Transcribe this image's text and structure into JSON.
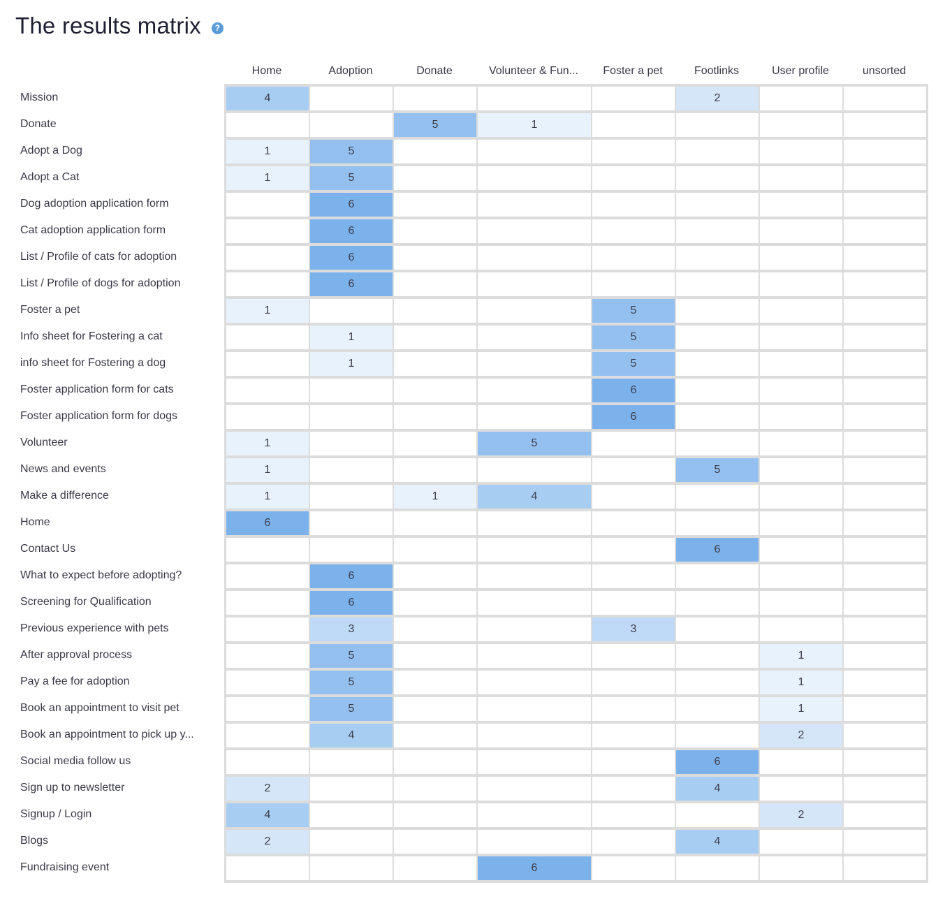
{
  "title": "The results matrix",
  "help_icon": "help-icon",
  "columns": [
    "Home",
    "Adoption",
    "Donate",
    "Volunteer & Fun...",
    "Foster a pet",
    "Footlinks",
    "User profile",
    "unsorted"
  ],
  "rows": [
    {
      "label": "Mission",
      "values": [
        4,
        0,
        0,
        0,
        0,
        2,
        0,
        0
      ]
    },
    {
      "label": "Donate",
      "values": [
        0,
        0,
        5,
        1,
        0,
        0,
        0,
        0
      ]
    },
    {
      "label": "Adopt a Dog",
      "values": [
        1,
        5,
        0,
        0,
        0,
        0,
        0,
        0
      ]
    },
    {
      "label": "Adopt a Cat",
      "values": [
        1,
        5,
        0,
        0,
        0,
        0,
        0,
        0
      ]
    },
    {
      "label": "Dog adoption application form",
      "values": [
        0,
        6,
        0,
        0,
        0,
        0,
        0,
        0
      ]
    },
    {
      "label": "Cat adoption application form",
      "values": [
        0,
        6,
        0,
        0,
        0,
        0,
        0,
        0
      ]
    },
    {
      "label": "List / Profile of cats for adoption",
      "values": [
        0,
        6,
        0,
        0,
        0,
        0,
        0,
        0
      ]
    },
    {
      "label": "List / Profile of dogs for adoption",
      "values": [
        0,
        6,
        0,
        0,
        0,
        0,
        0,
        0
      ]
    },
    {
      "label": "Foster a pet",
      "values": [
        1,
        0,
        0,
        0,
        5,
        0,
        0,
        0
      ]
    },
    {
      "label": "Info sheet for Fostering a cat",
      "values": [
        0,
        1,
        0,
        0,
        5,
        0,
        0,
        0
      ]
    },
    {
      "label": "info sheet for Fostering a dog",
      "values": [
        0,
        1,
        0,
        0,
        5,
        0,
        0,
        0
      ]
    },
    {
      "label": "Foster application form for cats",
      "values": [
        0,
        0,
        0,
        0,
        6,
        0,
        0,
        0
      ]
    },
    {
      "label": "Foster application form for dogs",
      "values": [
        0,
        0,
        0,
        0,
        6,
        0,
        0,
        0
      ]
    },
    {
      "label": "Volunteer",
      "values": [
        1,
        0,
        0,
        5,
        0,
        0,
        0,
        0
      ]
    },
    {
      "label": "News and events",
      "values": [
        1,
        0,
        0,
        0,
        0,
        5,
        0,
        0
      ]
    },
    {
      "label": "Make a difference",
      "values": [
        1,
        0,
        1,
        4,
        0,
        0,
        0,
        0
      ]
    },
    {
      "label": "Home",
      "values": [
        6,
        0,
        0,
        0,
        0,
        0,
        0,
        0
      ]
    },
    {
      "label": "Contact Us",
      "values": [
        0,
        0,
        0,
        0,
        0,
        6,
        0,
        0
      ]
    },
    {
      "label": "What to expect before adopting?",
      "values": [
        0,
        6,
        0,
        0,
        0,
        0,
        0,
        0
      ]
    },
    {
      "label": "Screening for Qualification",
      "values": [
        0,
        6,
        0,
        0,
        0,
        0,
        0,
        0
      ]
    },
    {
      "label": "Previous experience with pets",
      "values": [
        0,
        3,
        0,
        0,
        3,
        0,
        0,
        0
      ]
    },
    {
      "label": "After approval process",
      "values": [
        0,
        5,
        0,
        0,
        0,
        0,
        1,
        0
      ]
    },
    {
      "label": "Pay a fee for adoption",
      "values": [
        0,
        5,
        0,
        0,
        0,
        0,
        1,
        0
      ]
    },
    {
      "label": "Book an appointment to visit pet",
      "values": [
        0,
        5,
        0,
        0,
        0,
        0,
        1,
        0
      ]
    },
    {
      "label": "Book an appointment to pick up y...",
      "values": [
        0,
        4,
        0,
        0,
        0,
        0,
        2,
        0
      ]
    },
    {
      "label": "Social media follow us",
      "values": [
        0,
        0,
        0,
        0,
        0,
        6,
        0,
        0
      ]
    },
    {
      "label": "Sign up to newsletter",
      "values": [
        2,
        0,
        0,
        0,
        0,
        4,
        0,
        0
      ]
    },
    {
      "label": "Signup / Login",
      "values": [
        4,
        0,
        0,
        0,
        0,
        0,
        2,
        0
      ]
    },
    {
      "label": "Blogs",
      "values": [
        2,
        0,
        0,
        0,
        0,
        4,
        0,
        0
      ]
    },
    {
      "label": "Fundraising event",
      "values": [
        0,
        0,
        0,
        6,
        0,
        0,
        0,
        0
      ]
    }
  ]
}
